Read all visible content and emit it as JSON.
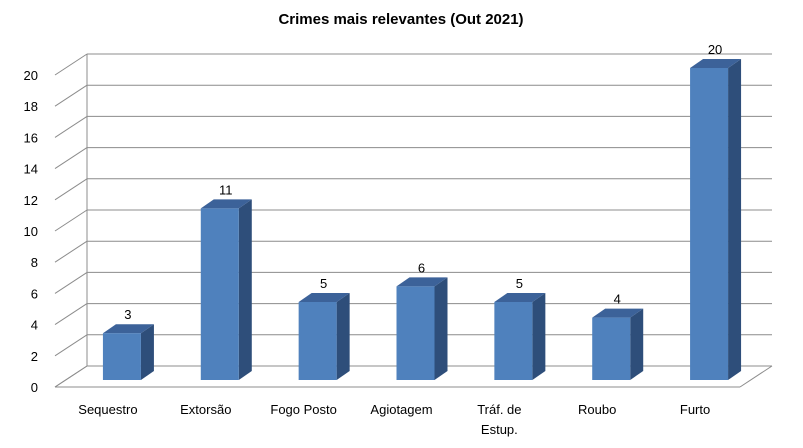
{
  "chart_data": {
    "type": "bar",
    "title": "Crimes mais relevantes (Out 2021)",
    "xlabel": "",
    "ylabel": "",
    "categories": [
      [
        "Sequestro"
      ],
      [
        "Extorsão"
      ],
      [
        "Fogo Posto"
      ],
      [
        "Agiotagem"
      ],
      [
        "Tráf. de",
        "Estup."
      ],
      [
        "Roubo"
      ],
      [
        "Furto"
      ]
    ],
    "values": [
      3,
      11,
      5,
      6,
      5,
      4,
      20
    ],
    "ylim": [
      0,
      20
    ],
    "yticks": [
      0,
      2,
      4,
      6,
      8,
      10,
      12,
      14,
      16,
      18,
      20
    ],
    "grid": true,
    "legend": "none",
    "three_d": true,
    "colors": {
      "bar_front": "#4F81BD",
      "bar_side": "#2E4E7A",
      "bar_top": "#3C6299",
      "grid": "#8C8C8C",
      "wall": "#ffffff"
    }
  }
}
